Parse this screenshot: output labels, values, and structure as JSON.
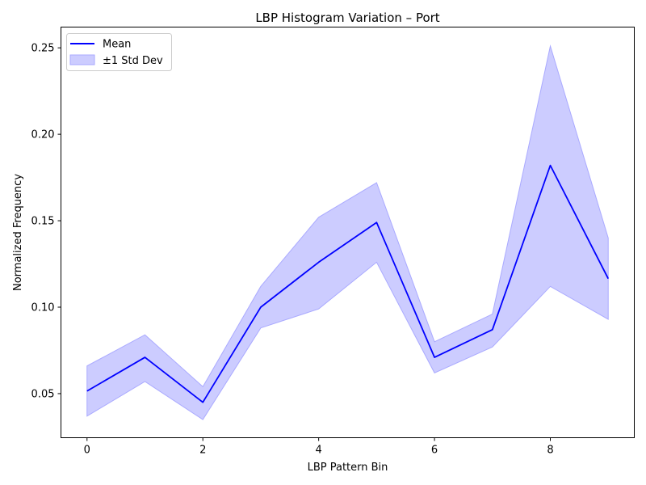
{
  "colors": {
    "mean_line": "#0000ff",
    "band_fill": "#ccccff",
    "band_edge": "#aaaaff",
    "axes": "#000000",
    "background": "#ffffff"
  },
  "chart_data": {
    "type": "line",
    "title": "LBP Histogram Variation – Port",
    "xlabel": "LBP Pattern Bin",
    "ylabel": "Normalized Frequency",
    "x": [
      0,
      1,
      2,
      3,
      4,
      5,
      6,
      7,
      8,
      9
    ],
    "xlim": [
      -0.45,
      9.45
    ],
    "ylim": [
      0.0245,
      0.262
    ],
    "xticks": [
      0,
      2,
      4,
      6,
      8
    ],
    "yticks": [
      0.05,
      0.1,
      0.15,
      0.2,
      0.25
    ],
    "xtick_labels": [
      "0",
      "2",
      "4",
      "6",
      "8"
    ],
    "ytick_labels": [
      "0.05",
      "0.10",
      "0.15",
      "0.20",
      "0.25"
    ],
    "grid": false,
    "legend_position": "top-left",
    "series": [
      {
        "name": "Mean",
        "kind": "line",
        "values": [
          0.0515,
          0.071,
          0.045,
          0.1,
          0.126,
          0.149,
          0.071,
          0.087,
          0.182,
          0.1165
        ]
      },
      {
        "name": "±1 Std Dev",
        "kind": "band",
        "lower": [
          0.037,
          0.057,
          0.035,
          0.088,
          0.099,
          0.126,
          0.062,
          0.077,
          0.112,
          0.093
        ],
        "upper": [
          0.066,
          0.084,
          0.054,
          0.112,
          0.152,
          0.172,
          0.08,
          0.096,
          0.251,
          0.14
        ]
      }
    ]
  }
}
